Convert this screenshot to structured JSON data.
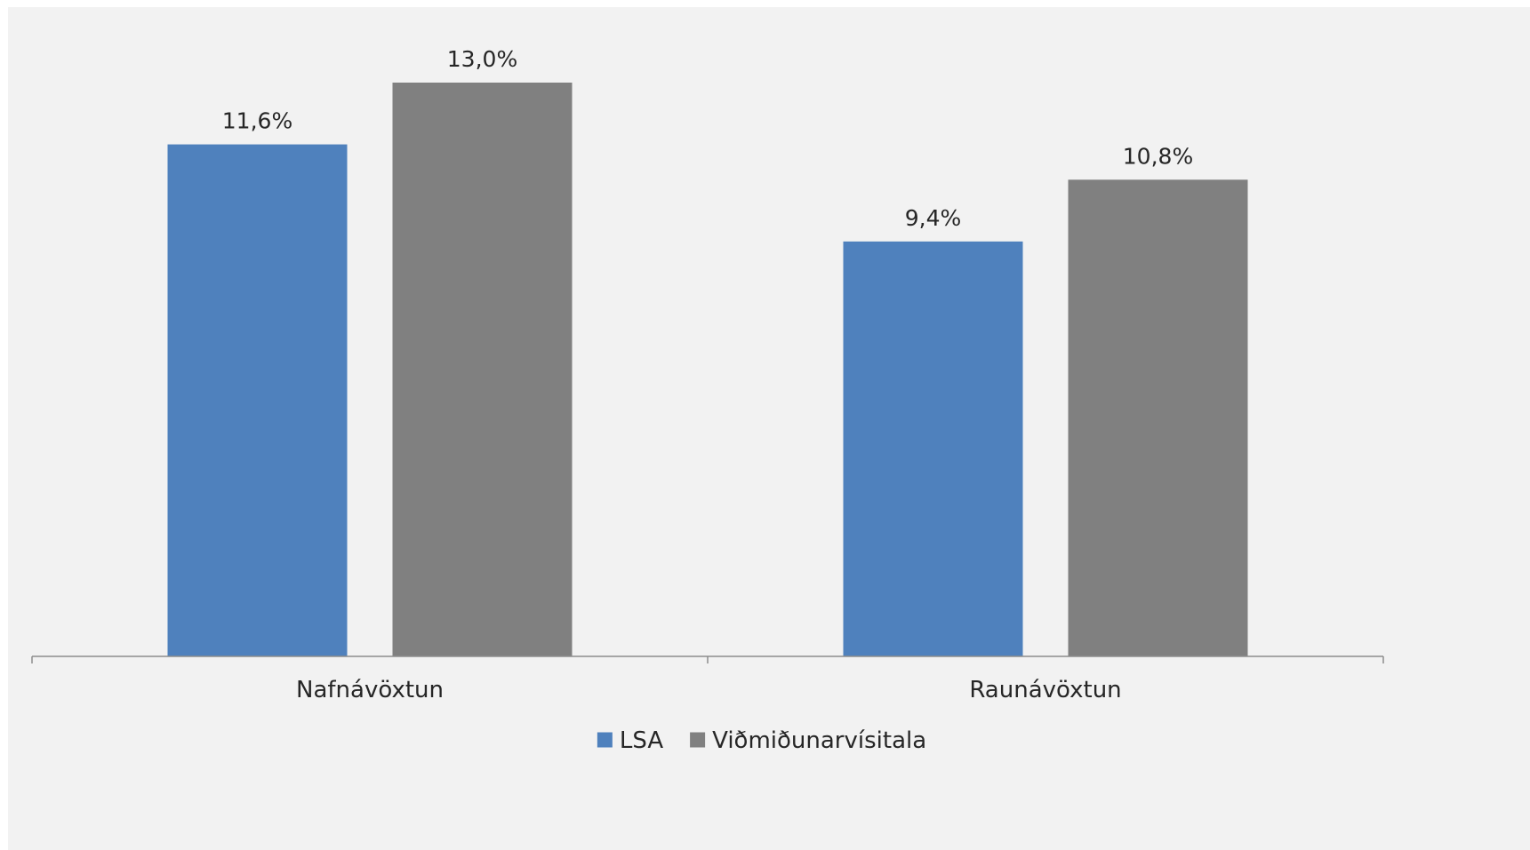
{
  "chart_data": {
    "type": "bar",
    "categories": [
      "Nafnávöxtun",
      "Raunávöxtun"
    ],
    "series": [
      {
        "name": "LSA",
        "color": "#4f81bd",
        "values": [
          11.6,
          9.4
        ],
        "labels": [
          "11,6%",
          "9,4%"
        ]
      },
      {
        "name": "Viðmiðunarvísitala",
        "color": "#808080",
        "values": [
          13.0,
          10.8
        ],
        "labels": [
          "13,0%",
          "10,8%"
        ]
      }
    ],
    "title": "",
    "xlabel": "",
    "ylabel": "",
    "ylim": [
      0,
      14
    ],
    "grid": false,
    "legend": "bottom-center",
    "show_y_axis": false
  }
}
